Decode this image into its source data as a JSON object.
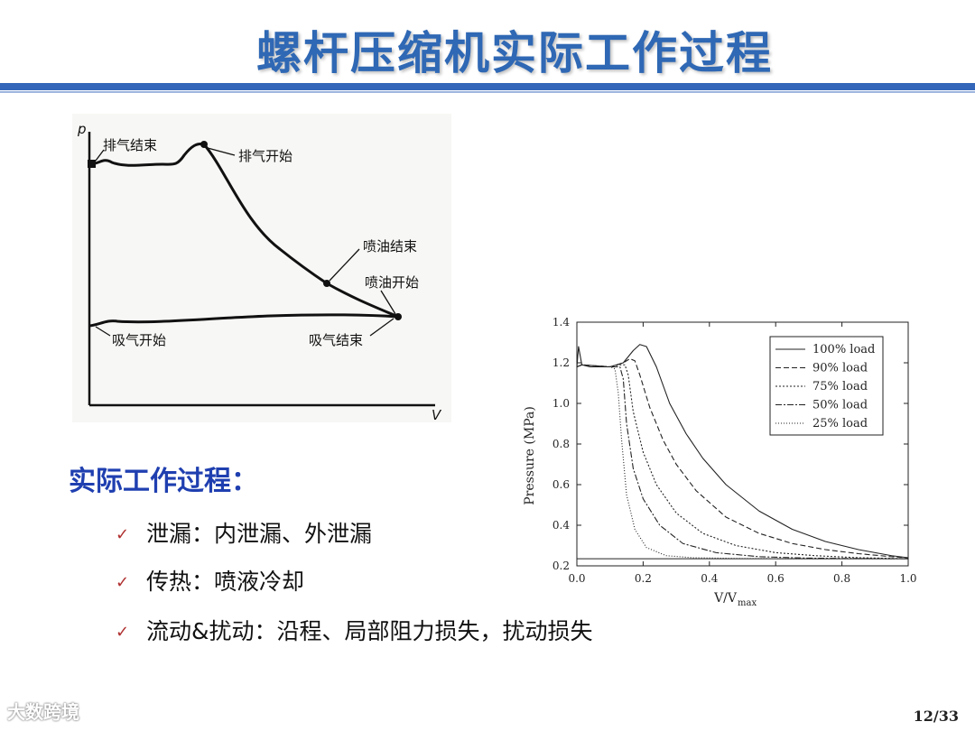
{
  "title": "螺杆压缩机实际工作过程",
  "sketch": {
    "p_axis": "p",
    "v_axis": "V",
    "labels": {
      "discharge_end": "排气结束",
      "discharge_start": "排气开始",
      "injection_end": "喷油结束",
      "injection_start": "喷油开始",
      "suction_start": "吸气开始",
      "suction_end": "吸气结束"
    }
  },
  "chart_data": {
    "type": "line",
    "xlabel_main": "V/V",
    "xlabel_sub": "max",
    "ylabel": "Pressure (MPa)",
    "xlim": [
      0.0,
      1.0
    ],
    "ylim": [
      0.2,
      1.4
    ],
    "x_ticks": [
      "0.0",
      "0.2",
      "0.4",
      "0.6",
      "0.8",
      "1.0"
    ],
    "y_ticks": [
      "0.2",
      "0.4",
      "0.6",
      "0.8",
      "1.0",
      "1.2",
      "1.4"
    ],
    "suction_line": {
      "x": [
        0.0,
        1.0
      ],
      "y": [
        0.235,
        0.235
      ]
    },
    "series": [
      {
        "name": "100% load",
        "dash": "",
        "x": [
          0.0,
          0.005,
          0.015,
          0.04,
          0.1,
          0.14,
          0.17,
          0.19,
          0.21,
          0.24,
          0.28,
          0.33,
          0.38,
          0.45,
          0.55,
          0.65,
          0.75,
          0.85,
          0.95,
          1.0
        ],
        "y": [
          1.18,
          1.28,
          1.19,
          1.18,
          1.18,
          1.2,
          1.26,
          1.29,
          1.28,
          1.18,
          1.0,
          0.85,
          0.73,
          0.6,
          0.47,
          0.38,
          0.32,
          0.28,
          0.25,
          0.24
        ]
      },
      {
        "name": "90% load",
        "dash": "6,3",
        "x": [
          0.0,
          0.015,
          0.1,
          0.14,
          0.16,
          0.175,
          0.19,
          0.22,
          0.26,
          0.3,
          0.36,
          0.45,
          0.55,
          0.65,
          0.75,
          0.85,
          0.95,
          1.0
        ],
        "y": [
          1.18,
          1.19,
          1.18,
          1.2,
          1.22,
          1.21,
          1.14,
          0.98,
          0.82,
          0.7,
          0.57,
          0.44,
          0.36,
          0.31,
          0.28,
          0.26,
          0.245,
          0.24
        ]
      },
      {
        "name": "75% load",
        "dash": "2,2",
        "x": [
          0.0,
          0.015,
          0.1,
          0.13,
          0.145,
          0.155,
          0.17,
          0.2,
          0.24,
          0.3,
          0.38,
          0.48,
          0.6,
          0.72,
          0.85,
          1.0
        ],
        "y": [
          1.18,
          1.19,
          1.18,
          1.19,
          1.19,
          1.14,
          0.96,
          0.76,
          0.6,
          0.46,
          0.36,
          0.3,
          0.265,
          0.25,
          0.24,
          0.235
        ]
      },
      {
        "name": "50% load",
        "dash": "7,2,2,2",
        "x": [
          0.0,
          0.015,
          0.1,
          0.13,
          0.14,
          0.15,
          0.17,
          0.2,
          0.25,
          0.32,
          0.42,
          0.55,
          0.7,
          0.85,
          1.0
        ],
        "y": [
          1.18,
          1.19,
          1.18,
          1.18,
          1.12,
          0.9,
          0.68,
          0.53,
          0.4,
          0.31,
          0.265,
          0.245,
          0.238,
          0.236,
          0.235
        ]
      },
      {
        "name": "25% load",
        "dash": "1,2",
        "x": [
          0.0,
          0.015,
          0.1,
          0.115,
          0.125,
          0.135,
          0.15,
          0.175,
          0.21,
          0.27,
          0.35,
          0.5,
          0.7,
          1.0
        ],
        "y": [
          1.18,
          1.19,
          1.18,
          1.17,
          1.05,
          0.82,
          0.55,
          0.38,
          0.29,
          0.25,
          0.24,
          0.236,
          0.235,
          0.235
        ]
      }
    ]
  },
  "section": {
    "heading": "实际工作过程：",
    "bullets": [
      "泄漏：内泄漏、外泄漏",
      "传热：喷液冷却",
      "流动&扰动：沿程、局部阻力损失，扰动损失"
    ],
    "check_glyph": "✓"
  },
  "watermark": "大数跨境",
  "page_number": "12/33"
}
